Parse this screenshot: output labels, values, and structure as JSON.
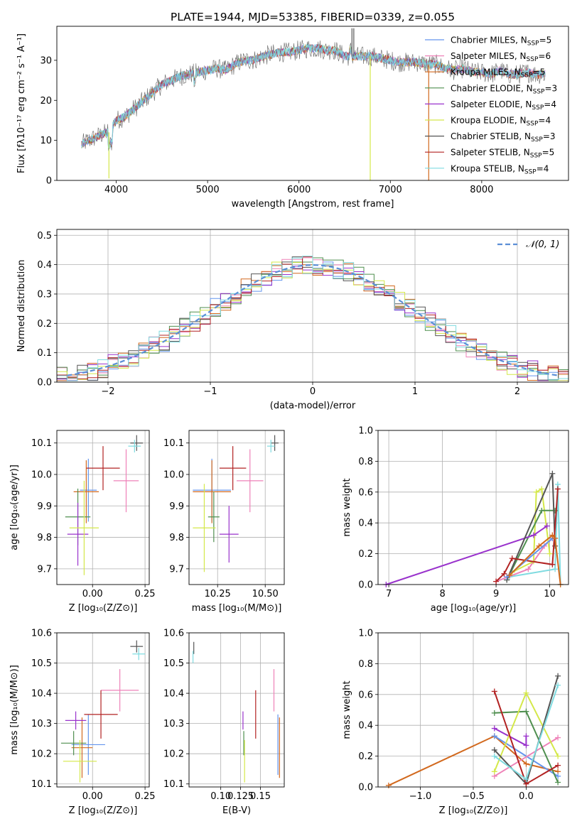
{
  "colors": {
    "chabrier_miles": "#6495ed",
    "salpeter_miles": "#ee82b8",
    "kroupa_miles": "#d2691e",
    "chabrier_elodie": "#4f8f4f",
    "salpeter_elodie": "#9932cc",
    "kroupa_elodie": "#d4e84a",
    "chabrier_stelib": "#555555",
    "salpeter_stelib": "#b22222",
    "kroupa_stelib": "#7fdbe0",
    "gauss": "#5b8fd6",
    "grid": "#b0b0b0"
  },
  "chart_data": [
    {
      "id": "spectrum",
      "type": "line",
      "title": "PLATE=1944, MJD=53385, FIBERID=0339, z=0.055",
      "xlabel": "wavelength [Angstrom, rest frame]",
      "ylabel": "Flux [fλ10⁻¹⁷ erg cm⁻² s⁻¹ A⁻¹]",
      "xlim": [
        3350,
        8950
      ],
      "ylim": [
        0,
        38.5
      ],
      "xticks": [
        4000,
        5000,
        6000,
        7000,
        8000
      ],
      "yticks": [
        0,
        10,
        20,
        30
      ],
      "grid": false,
      "legend_position": "top-right",
      "continuum": {
        "x": [
          3620,
          3700,
          3800,
          3900,
          4000,
          4100,
          4200,
          4300,
          4400,
          4500,
          4600,
          4700,
          4800,
          4900,
          5000,
          5100,
          5200,
          5300,
          5400,
          5500,
          5600,
          5700,
          5800,
          5900,
          6000,
          6100,
          6200,
          6300,
          6400,
          6500,
          6600,
          6700,
          6800,
          6900,
          7000,
          7100,
          7200,
          7300,
          7400,
          7500,
          7600,
          7700,
          7800,
          7900,
          8000,
          8100,
          8200,
          8300,
          8400,
          8500,
          8600,
          8700
        ],
        "y": [
          9,
          10,
          11,
          12,
          15,
          16,
          18,
          20,
          22,
          24,
          25,
          26,
          26.5,
          27,
          27.5,
          28,
          27.5,
          29,
          30,
          30,
          31,
          31.5,
          32,
          32,
          32.5,
          33,
          33,
          32.5,
          32.5,
          31,
          31,
          31,
          31,
          30.5,
          30,
          29.5,
          29.5,
          29.5,
          29,
          29,
          28,
          27.5,
          28,
          27,
          27,
          26.5,
          27.5,
          26.5,
          26.5,
          27,
          26.5,
          26.5
        ]
      },
      "spikes": [
        {
          "x": 3920,
          "y0": 0.5,
          "y1": 12,
          "series": "kroupa_elodie"
        },
        {
          "x": 6780,
          "y0": 0,
          "y1": 31,
          "series": "kroupa_elodie"
        },
        {
          "x": 7420,
          "y0": 0,
          "y1": 29,
          "series": "kroupa_miles"
        },
        {
          "x": 6580,
          "y0": 31,
          "y1": 38,
          "series": "chabrier_stelib"
        },
        {
          "x": 6600,
          "y0": 31,
          "y1": 38,
          "series": "chabrier_stelib"
        }
      ],
      "series": [
        {
          "key": "chabrier_miles",
          "name": "Chabrier MILES, N_SSP=5"
        },
        {
          "key": "salpeter_miles",
          "name": "Salpeter MILES, N_SSP=6"
        },
        {
          "key": "kroupa_miles",
          "name": "Kroupa MILES, N_SSP=5"
        },
        {
          "key": "chabrier_elodie",
          "name": "Chabrier ELODIE, N_SSP=3"
        },
        {
          "key": "salpeter_elodie",
          "name": "Salpeter ELODIE, N_SSP=4"
        },
        {
          "key": "kroupa_elodie",
          "name": "Kroupa ELODIE, N_SSP=4"
        },
        {
          "key": "chabrier_stelib",
          "name": "Chabrier STELIB, N_SSP=3"
        },
        {
          "key": "salpeter_stelib",
          "name": "Salpeter STELIB, N_SSP=5"
        },
        {
          "key": "kroupa_stelib",
          "name": "Kroupa STELIB, N_SSP=4"
        }
      ]
    },
    {
      "id": "residuals",
      "type": "step",
      "xlabel": "(data-model)/error",
      "ylabel": "Normed distribution",
      "xlim": [
        -2.5,
        2.5
      ],
      "ylim": [
        0,
        0.52
      ],
      "xticks": [
        -2,
        -1,
        0,
        1,
        2
      ],
      "xticklabels": [
        "−2",
        "−1",
        "0",
        "1",
        "2"
      ],
      "yticks": [
        0,
        0.1,
        0.2,
        0.3,
        0.4,
        0.5
      ],
      "yticklabels": [
        "0.0",
        "0.1",
        "0.2",
        "0.3",
        "0.4",
        "0.5"
      ],
      "grid": true,
      "bin_width": 0.1,
      "gauss_label": "𝒩(0, 1)",
      "gauss_mu": 0,
      "gauss_sigma": 1
    },
    {
      "id": "age_vs_Z",
      "type": "errorbar",
      "xlabel": "Z [log₁₀(Z/Z⊙)]",
      "ylabel": "age  [log₁₀(age/yr)]",
      "xlim": [
        -0.17,
        0.27
      ],
      "ylim": [
        9.65,
        10.14
      ],
      "xticks": [
        0,
        0.25
      ],
      "xticklabels": [
        "0.00",
        "0.25"
      ],
      "yticks": [
        9.7,
        9.8,
        9.9,
        10.0,
        10.1
      ],
      "yticklabels": [
        "9.7",
        "9.8",
        "9.9",
        "10.0",
        "10.1"
      ],
      "grid": true,
      "points": [
        {
          "s": "chabrier_miles",
          "x": -0.02,
          "xe": 0.04,
          "y": 9.95,
          "ye": 0.1
        },
        {
          "s": "salpeter_miles",
          "x": 0.16,
          "xe": 0.06,
          "y": 9.98,
          "ye": 0.1
        },
        {
          "s": "kroupa_miles",
          "x": -0.03,
          "xe": 0.06,
          "y": 9.945,
          "ye": 0.1
        },
        {
          "s": "chabrier_elodie",
          "x": -0.07,
          "xe": 0.06,
          "y": 9.865,
          "ye": 0.09
        },
        {
          "s": "salpeter_elodie",
          "x": -0.07,
          "xe": 0.05,
          "y": 9.81,
          "ye": 0.1
        },
        {
          "s": "kroupa_elodie",
          "x": -0.04,
          "xe": 0.07,
          "y": 9.83,
          "ye": 0.15
        },
        {
          "s": "chabrier_stelib",
          "x": 0.21,
          "xe": 0.03,
          "y": 10.1,
          "ye": 0.025
        },
        {
          "s": "salpeter_stelib",
          "x": 0.05,
          "xe": 0.08,
          "y": 10.02,
          "ye": 0.07
        },
        {
          "s": "kroupa_stelib",
          "x": 0.2,
          "xe": 0.03,
          "y": 10.09,
          "ye": 0.02
        }
      ]
    },
    {
      "id": "age_vs_mass",
      "type": "errorbar",
      "xlabel": "mass [log₁₀(M/M⊙)]",
      "ylabel": "",
      "xlim": [
        10.1,
        10.6
      ],
      "ylim": [
        9.65,
        10.14
      ],
      "xticks": [
        10.25,
        10.5
      ],
      "xticklabels": [
        "10.25",
        "10.50"
      ],
      "yticks": [
        9.7,
        9.8,
        9.9,
        10.0,
        10.1
      ],
      "yticklabels": [
        "9.7",
        "9.8",
        "9.9",
        "10.0",
        "10.1"
      ],
      "grid": true,
      "points": [
        {
          "s": "chabrier_miles",
          "x": 10.22,
          "xe": 0.1,
          "y": 9.95,
          "ye": 0.1
        },
        {
          "s": "salpeter_miles",
          "x": 10.42,
          "xe": 0.07,
          "y": 9.98,
          "ye": 0.1
        },
        {
          "s": "kroupa_miles",
          "x": 10.22,
          "xe": 0.1,
          "y": 9.945,
          "ye": 0.1
        },
        {
          "s": "chabrier_elodie",
          "x": 10.23,
          "xe": 0.03,
          "y": 9.865,
          "ye": 0.08
        },
        {
          "s": "salpeter_elodie",
          "x": 10.31,
          "xe": 0.05,
          "y": 9.81,
          "ye": 0.09
        },
        {
          "s": "kroupa_elodie",
          "x": 10.18,
          "xe": 0.06,
          "y": 9.83,
          "ye": 0.14
        },
        {
          "s": "chabrier_stelib",
          "x": 10.55,
          "xe": 0.02,
          "y": 10.1,
          "ye": 0.025
        },
        {
          "s": "salpeter_stelib",
          "x": 10.33,
          "xe": 0.07,
          "y": 10.02,
          "ye": 0.07
        },
        {
          "s": "kroupa_stelib",
          "x": 10.53,
          "xe": 0.02,
          "y": 10.09,
          "ye": 0.02
        }
      ]
    },
    {
      "id": "massweight_vs_age",
      "type": "line",
      "xlabel": "age  [log₁₀(age/yr)]",
      "ylabel": "mass weight",
      "xlim": [
        6.8,
        10.35
      ],
      "ylim": [
        0,
        1
      ],
      "xticks": [
        7,
        8,
        9,
        10
      ],
      "yticks": [
        0,
        0.2,
        0.4,
        0.6,
        0.8,
        1.0
      ],
      "yticklabels": [
        "0.0",
        "0.2",
        "0.4",
        "0.6",
        "0.8",
        "1.0"
      ],
      "grid": true,
      "series": [
        {
          "s": "kroupa_stelib",
          "points": [
            [
              9.25,
              0.05
            ],
            [
              10.1,
              0.1
            ],
            [
              10.15,
              0.65
            ],
            [
              10.2,
              0.0
            ]
          ]
        },
        {
          "s": "salpeter_miles",
          "points": [
            [
              9.0,
              0.02
            ],
            [
              9.6,
              0.1
            ],
            [
              9.9,
              0.25
            ],
            [
              10.05,
              0.3
            ],
            [
              10.1,
              0.3
            ]
          ]
        },
        {
          "s": "kroupa_elodie",
          "points": [
            [
              9.3,
              0.08
            ],
            [
              9.7,
              0.15
            ],
            [
              9.75,
              0.6
            ],
            [
              9.85,
              0.62
            ],
            [
              10.0,
              0.2
            ]
          ]
        },
        {
          "s": "chabrier_elodie",
          "points": [
            [
              9.2,
              0.03
            ],
            [
              9.85,
              0.48
            ],
            [
              10.1,
              0.48
            ]
          ]
        },
        {
          "s": "salpeter_elodie",
          "points": [
            [
              6.95,
              0.0
            ],
            [
              9.7,
              0.32
            ],
            [
              9.95,
              0.38
            ]
          ]
        },
        {
          "s": "chabrier_stelib",
          "points": [
            [
              9.2,
              0.03
            ],
            [
              10.05,
              0.72
            ],
            [
              10.1,
              0.25
            ]
          ]
        },
        {
          "s": "salpeter_stelib",
          "points": [
            [
              9.0,
              0.02
            ],
            [
              9.15,
              0.07
            ],
            [
              9.3,
              0.17
            ],
            [
              10.05,
              0.13
            ],
            [
              10.15,
              0.62
            ]
          ]
        },
        {
          "s": "chabrier_miles",
          "points": [
            [
              9.2,
              0.05
            ],
            [
              10.05,
              0.3
            ],
            [
              10.1,
              0.3
            ]
          ]
        },
        {
          "s": "kroupa_miles",
          "points": [
            [
              9.25,
              0.06
            ],
            [
              9.8,
              0.25
            ],
            [
              10.05,
              0.32
            ],
            [
              10.1,
              0.3
            ],
            [
              10.2,
              0.0
            ]
          ]
        }
      ]
    },
    {
      "id": "mass_vs_Z",
      "type": "errorbar",
      "xlabel": "Z [log₁₀(Z/Z⊙)]",
      "ylabel": "mass [log₁₀(M/M⊙)]",
      "xlim": [
        -0.17,
        0.27
      ],
      "ylim": [
        10.09,
        10.6
      ],
      "xticks": [
        0,
        0.25
      ],
      "xticklabels": [
        "0.00",
        "0.25"
      ],
      "yticks": [
        10.1,
        10.2,
        10.3,
        10.4,
        10.5,
        10.6
      ],
      "yticklabels": [
        "10.1",
        "10.2",
        "10.3",
        "10.4",
        "10.5",
        "10.6"
      ],
      "grid": true,
      "points": [
        {
          "s": "chabrier_miles",
          "x": -0.02,
          "xe": 0.08,
          "y": 10.23,
          "ye": 0.1
        },
        {
          "s": "salpeter_miles",
          "x": 0.13,
          "xe": 0.09,
          "y": 10.41,
          "ye": 0.07
        },
        {
          "s": "kroupa_miles",
          "x": -0.05,
          "xe": 0.05,
          "y": 10.22,
          "ye": 0.1
        },
        {
          "s": "chabrier_elodie",
          "x": -0.09,
          "xe": 0.06,
          "y": 10.235,
          "ye": 0.04
        },
        {
          "s": "salpeter_elodie",
          "x": -0.08,
          "xe": 0.05,
          "y": 10.31,
          "ye": 0.03
        },
        {
          "s": "kroupa_elodie",
          "x": -0.06,
          "xe": 0.08,
          "y": 10.175,
          "ye": 0.07
        },
        {
          "s": "chabrier_stelib",
          "x": 0.21,
          "xe": 0.03,
          "y": 10.555,
          "ye": 0.02
        },
        {
          "s": "salpeter_stelib",
          "x": 0.04,
          "xe": 0.08,
          "y": 10.33,
          "ye": 0.08
        },
        {
          "s": "kroupa_stelib",
          "x": 0.22,
          "xe": 0.03,
          "y": 10.53,
          "ye": 0.02
        }
      ]
    },
    {
      "id": "mass_vs_ebv",
      "type": "errorbar",
      "xlabel": "E(B-V)",
      "ylabel": "",
      "xlim": [
        0.06,
        0.18
      ],
      "ylim": [
        10.09,
        10.6
      ],
      "xticks": [
        0.1,
        0.125,
        0.15
      ],
      "xticklabels": [
        "0.10",
        "0.125",
        "0.15"
      ],
      "yticks": [
        10.1,
        10.2,
        10.3,
        10.4,
        10.5,
        10.6
      ],
      "yticklabels": [
        "10.1",
        "10.2",
        "10.3",
        "10.4",
        "10.5",
        "10.6"
      ],
      "grid": true,
      "points": [
        {
          "s": "chabrier_miles",
          "x": 0.172,
          "xe": 0,
          "y": 10.23,
          "ye": 0.1
        },
        {
          "s": "salpeter_miles",
          "x": 0.167,
          "xe": 0,
          "y": 10.41,
          "ye": 0.07
        },
        {
          "s": "kroupa_miles",
          "x": 0.174,
          "xe": 0,
          "y": 10.22,
          "ye": 0.1
        },
        {
          "s": "chabrier_elodie",
          "x": 0.129,
          "xe": 0,
          "y": 10.235,
          "ye": 0.04
        },
        {
          "s": "salpeter_elodie",
          "x": 0.128,
          "xe": 0,
          "y": 10.31,
          "ye": 0.03
        },
        {
          "s": "kroupa_elodie",
          "x": 0.13,
          "xe": 0,
          "y": 10.175,
          "ye": 0.07
        },
        {
          "s": "chabrier_stelib",
          "x": 0.066,
          "xe": 0,
          "y": 10.55,
          "ye": 0.02
        },
        {
          "s": "salpeter_stelib",
          "x": 0.144,
          "xe": 0,
          "y": 10.33,
          "ye": 0.08
        },
        {
          "s": "kroupa_stelib",
          "x": 0.065,
          "xe": 0,
          "y": 10.52,
          "ye": 0.02
        }
      ]
    },
    {
      "id": "massweight_vs_Z",
      "type": "line",
      "xlabel": "Z [log₁₀(Z/Z⊙)]",
      "ylabel": "mass weight",
      "xlim": [
        -1.4,
        0.4
      ],
      "ylim": [
        0,
        1
      ],
      "xticks": [
        -1.0,
        -0.5,
        0.0
      ],
      "xticklabels": [
        "−1.0",
        "−0.5",
        "0.0"
      ],
      "yticks": [
        0,
        0.2,
        0.4,
        0.6,
        0.8,
        1.0
      ],
      "yticklabels": [
        "0.0",
        "0.2",
        "0.4",
        "0.6",
        "0.8",
        "1.0"
      ],
      "grid": true,
      "series": [
        {
          "s": "kroupa_miles",
          "points": [
            [
              -1.3,
              0.01
            ],
            [
              -0.3,
              0.33
            ],
            [
              0.0,
              0.15
            ],
            [
              0.3,
              0.1
            ]
          ]
        },
        {
          "s": "chabrier_miles",
          "points": [
            [
              -0.3,
              0.33
            ],
            [
              0.3,
              0.07
            ]
          ]
        },
        {
          "s": "salpeter_miles",
          "points": [
            [
              -0.3,
              0.07
            ],
            [
              0.3,
              0.32
            ]
          ]
        },
        {
          "s": "chabrier_elodie",
          "points": [
            [
              -0.3,
              0.48
            ],
            [
              0.0,
              0.49
            ],
            [
              0.3,
              0.03
            ]
          ]
        },
        {
          "s": "salpeter_elodie",
          "points": [
            [
              -0.3,
              0.38
            ],
            [
              0.0,
              0.27
            ],
            [
              0.0,
              0.33
            ]
          ]
        },
        {
          "s": "kroupa_elodie",
          "points": [
            [
              -0.3,
              0.1
            ],
            [
              0.0,
              0.61
            ],
            [
              0.3,
              0.2
            ]
          ]
        },
        {
          "s": "chabrier_stelib",
          "points": [
            [
              -0.3,
              0.24
            ],
            [
              0.0,
              0.02
            ],
            [
              0.3,
              0.72
            ]
          ]
        },
        {
          "s": "salpeter_stelib",
          "points": [
            [
              -0.3,
              0.62
            ],
            [
              0.0,
              0.02
            ],
            [
              0.3,
              0.14
            ]
          ]
        },
        {
          "s": "kroupa_stelib",
          "points": [
            [
              -0.3,
              0.2
            ],
            [
              0.0,
              0.05
            ],
            [
              0.3,
              0.66
            ]
          ]
        }
      ]
    }
  ]
}
